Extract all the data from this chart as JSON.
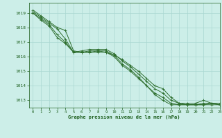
{
  "title": "Graphe pression niveau de la mer (hPa)",
  "bg_color": "#cceee8",
  "grid_color": "#aad8d2",
  "line_color": "#2d6e2d",
  "text_color": "#1a5c1a",
  "xlim": [
    -0.5,
    23
  ],
  "ylim": [
    1012.5,
    1019.7
  ],
  "yticks": [
    1013,
    1014,
    1015,
    1016,
    1017,
    1018,
    1019
  ],
  "xticks": [
    0,
    1,
    2,
    3,
    4,
    5,
    6,
    7,
    8,
    9,
    10,
    11,
    12,
    13,
    14,
    15,
    16,
    17,
    18,
    19,
    20,
    21,
    22,
    23
  ],
  "series": [
    [
      1019.2,
      1018.8,
      1018.4,
      1018.0,
      1017.8,
      1016.4,
      1016.3,
      1016.3,
      1016.4,
      1016.4,
      1016.1,
      1015.8,
      1015.4,
      1015.0,
      1014.5,
      1014.0,
      1013.8,
      1013.2,
      1012.8,
      1012.8,
      1012.8,
      1013.0,
      1012.8,
      1012.8
    ],
    [
      1019.1,
      1018.7,
      1018.3,
      1017.9,
      1017.2,
      1016.3,
      1016.4,
      1016.5,
      1016.5,
      1016.5,
      1016.2,
      1015.7,
      1015.3,
      1014.8,
      1014.3,
      1013.8,
      1013.5,
      1013.0,
      1012.8,
      1012.7,
      1012.7,
      1012.8,
      1012.8,
      1012.7
    ],
    [
      1019.0,
      1018.6,
      1018.2,
      1017.5,
      1017.0,
      1016.3,
      1016.3,
      1016.4,
      1016.4,
      1016.3,
      1016.1,
      1015.5,
      1015.1,
      1014.6,
      1014.0,
      1013.5,
      1013.2,
      1012.8,
      1012.7,
      1012.7,
      1012.7,
      1012.7,
      1012.8,
      1012.7
    ],
    [
      1019.0,
      1018.5,
      1018.1,
      1017.3,
      1016.9,
      1016.3,
      1016.3,
      1016.3,
      1016.3,
      1016.3,
      1016.0,
      1015.4,
      1015.0,
      1014.5,
      1014.0,
      1013.4,
      1013.0,
      1012.7,
      1012.7,
      1012.7,
      1012.7,
      1012.7,
      1012.7,
      1012.7
    ]
  ],
  "figsize": [
    3.2,
    2.0
  ],
  "dpi": 100
}
